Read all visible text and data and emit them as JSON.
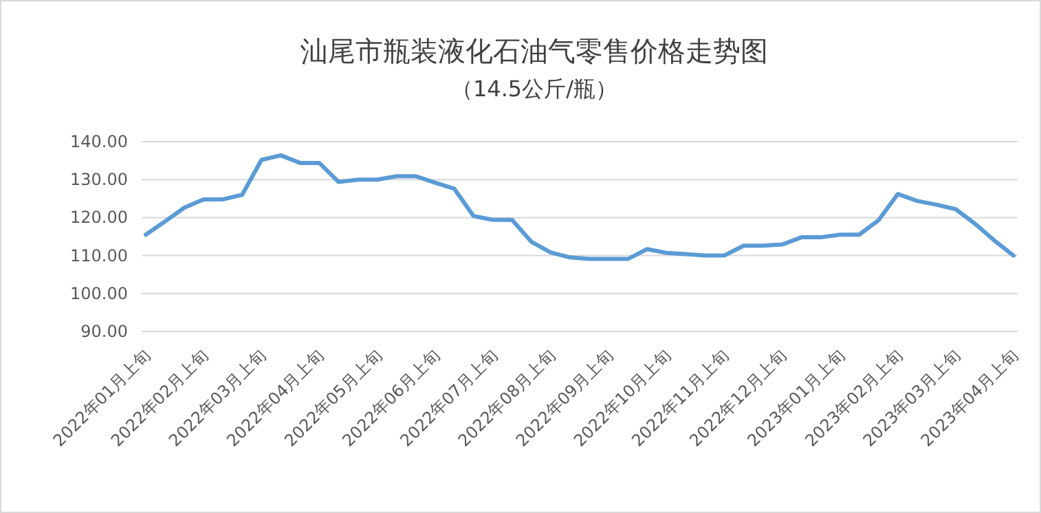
{
  "chart_data": {
    "type": "line",
    "title": "汕尾市瓶装液化石油气零售价格走势图",
    "subtitle": "（14.5公斤/瓶）",
    "categories": [
      "2022年01月上旬",
      null,
      null,
      "2022年02月上旬",
      null,
      null,
      "2022年03月上旬",
      null,
      null,
      "2022年04月上旬",
      null,
      null,
      "2022年05月上旬",
      null,
      null,
      "2022年06月上旬",
      null,
      null,
      "2022年07月上旬",
      null,
      null,
      "2022年08月上旬",
      null,
      null,
      "2022年09月上旬",
      null,
      null,
      "2022年10月上旬",
      null,
      null,
      "2022年11月上旬",
      null,
      null,
      "2022年12月上旬",
      null,
      null,
      "2023年01月上旬",
      null,
      null,
      "2023年02月上旬",
      null,
      null,
      "2023年03月上旬",
      null,
      null,
      "2023年04月上旬"
    ],
    "series": [
      {
        "color": "#5b9bd5",
        "values": [
          115.5,
          119,
          122.6,
          124.8,
          124.8,
          126,
          135.2,
          136.4,
          134.4,
          134.4,
          129.4,
          130,
          130,
          130.9,
          130.9,
          129.2,
          127.6,
          120.4,
          119.4,
          119.4,
          113.6,
          110.8,
          109.5,
          109.1,
          109.1,
          109.1,
          111.7,
          110.7,
          110.4,
          110,
          110,
          112.6,
          112.6,
          112.9,
          114.8,
          114.8,
          115.5,
          115.5,
          119.3,
          126.2,
          124.4,
          123.4,
          122.2,
          118.4,
          114,
          110
        ]
      }
    ],
    "ylim": [
      90,
      140
    ],
    "yticks": [
      {
        "value": 90,
        "label": "90.00"
      },
      {
        "value": 100,
        "label": "100.00"
      },
      {
        "value": 110,
        "label": "110.00"
      },
      {
        "value": 120,
        "label": "120.00"
      },
      {
        "value": 130,
        "label": "130.00"
      },
      {
        "value": 140,
        "label": "140.00"
      }
    ],
    "grid": "y",
    "marker": "none",
    "line_style": "solid"
  }
}
